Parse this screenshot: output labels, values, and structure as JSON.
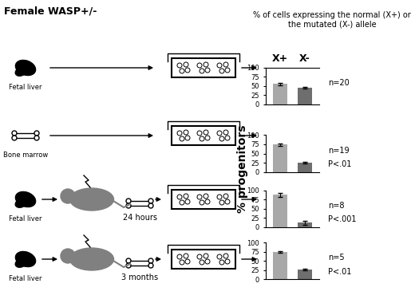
{
  "title": "Female WASP+/-",
  "header": "% of cells expressing the normal (X+) or the mutated (X-) allele",
  "ylabel": "% progenitors",
  "chart_data": [
    {
      "type": "bar",
      "categories": [
        "X+",
        "X-"
      ],
      "values": [
        55,
        45
      ],
      "errors": [
        3,
        3
      ],
      "colors": [
        "#a8a8a8",
        "#6e6e6e"
      ],
      "ylim": [
        0,
        100
      ],
      "yticks": [
        0,
        25,
        50,
        75,
        100
      ],
      "annotations": {
        "source": "Fetal liver",
        "n": "n=20"
      }
    },
    {
      "type": "bar",
      "categories": [
        null,
        null
      ],
      "values": [
        74,
        26
      ],
      "errors": [
        3,
        2
      ],
      "colors": [
        "#a8a8a8",
        "#6e6e6e"
      ],
      "ylim": [
        0,
        100
      ],
      "yticks": [
        0,
        25,
        50,
        75,
        100
      ],
      "annotations": {
        "source": "Bone marrow",
        "n": "n=19",
        "p": "P<.01"
      }
    },
    {
      "type": "bar",
      "categories": [
        null,
        null
      ],
      "values": [
        88,
        12
      ],
      "errors": [
        5,
        5
      ],
      "colors": [
        "#a8a8a8",
        "#6e6e6e"
      ],
      "ylim": [
        0,
        100
      ],
      "yticks": [
        0,
        25,
        50,
        75,
        100
      ],
      "annotations": {
        "source": "Fetal liver",
        "time": "24 hours",
        "n": "n=8",
        "p": "P<.001"
      }
    },
    {
      "type": "bar",
      "categories": [
        null,
        null
      ],
      "values": [
        74,
        26
      ],
      "errors": [
        2,
        2
      ],
      "colors": [
        "#a8a8a8",
        "#6e6e6e"
      ],
      "ylim": [
        0,
        100
      ],
      "yticks": [
        0,
        25,
        50,
        75,
        100
      ],
      "annotations": {
        "source": "Fetal liver",
        "time": "3 months",
        "n": "n=5",
        "p": "P<.01"
      }
    }
  ]
}
